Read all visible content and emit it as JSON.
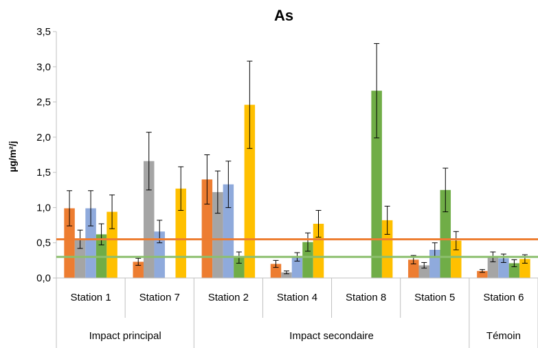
{
  "chart_data": {
    "type": "bar",
    "title": "As",
    "ylabel": "µg/m²/j",
    "xlabel": "",
    "ylim": [
      0,
      3.5
    ],
    "yticks": [
      "0,0",
      "0,5",
      "1,0",
      "1,5",
      "2,0",
      "2,5",
      "3,0",
      "3,5"
    ],
    "ytick_values": [
      0,
      0.5,
      1.0,
      1.5,
      2.0,
      2.5,
      3.0,
      3.5
    ],
    "grid": "none",
    "legend": "none",
    "categories": [
      "Station 1",
      "Station 7",
      "Station 2",
      "Station 4",
      "Station 8",
      "Station 5",
      "Station 6"
    ],
    "groups": [
      {
        "label": "Impact principal",
        "categories": [
          "Station 1",
          "Station 7"
        ]
      },
      {
        "label": "Impact secondaire",
        "categories": [
          "Station 2",
          "Station 4",
          "Station 8",
          "Station 5"
        ]
      },
      {
        "label": "Témoin",
        "categories": [
          "Station 6"
        ]
      }
    ],
    "series": [
      {
        "color": "#ED7D31",
        "values": [
          0.99,
          0.23,
          1.4,
          0.2,
          null,
          0.26,
          0.1
        ],
        "err": [
          0.25,
          0.05,
          0.35,
          0.05,
          null,
          0.06,
          0.02
        ]
      },
      {
        "color": "#A5A5A5",
        "values": [
          0.55,
          1.66,
          1.22,
          0.08,
          null,
          0.18,
          0.3
        ],
        "err": [
          0.13,
          0.41,
          0.3,
          0.02,
          null,
          0.04,
          0.07
        ]
      },
      {
        "color": "#8FAADC",
        "values": [
          0.99,
          0.66,
          1.33,
          0.3,
          null,
          0.4,
          0.28
        ],
        "err": [
          0.25,
          0.16,
          0.33,
          0.06,
          null,
          0.1,
          0.06
        ]
      },
      {
        "color": "#70AD47",
        "values": [
          0.62,
          null,
          0.29,
          0.51,
          2.66,
          1.25,
          0.21
        ],
        "err": [
          0.15,
          null,
          0.08,
          0.13,
          0.67,
          0.31,
          0.05
        ]
      },
      {
        "color": "#FFC000",
        "values": [
          0.94,
          1.27,
          2.46,
          0.77,
          0.82,
          0.53,
          0.27
        ],
        "err": [
          0.24,
          0.31,
          0.62,
          0.19,
          0.2,
          0.13,
          0.06
        ]
      }
    ],
    "reference_lines": [
      {
        "value": 0.55,
        "color": "#ED7D31"
      },
      {
        "value": 0.3,
        "color": "#8CBF6E"
      }
    ]
  }
}
